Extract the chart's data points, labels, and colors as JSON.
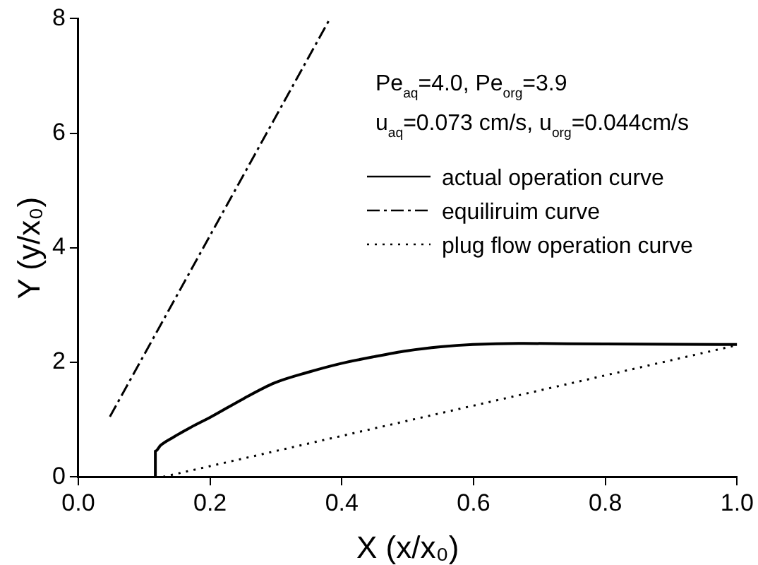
{
  "chart_data": {
    "type": "line",
    "xlabel": "X (x/x₀)",
    "ylabel": "Y (y/x₀)",
    "xlim": [
      0,
      1
    ],
    "xticks": [
      {
        "value": 0,
        "label": "0.0"
      },
      {
        "value": 0.2,
        "label": "0.2"
      },
      {
        "value": 0.4,
        "label": "0.4"
      },
      {
        "value": 0.6,
        "label": "0.6"
      },
      {
        "value": 0.8,
        "label": "0.8"
      },
      {
        "value": 1,
        "label": "1.0"
      }
    ],
    "ylim": [
      0,
      8
    ],
    "yticks": [
      0,
      2,
      4,
      6,
      8
    ],
    "grid": false,
    "legend": "top right",
    "marker": "none",
    "annotations": [
      "Pe$_{aq}$=4.0, Pe$_{org}$=3.9",
      "u$_{aq}$=0.073 cm/s, u$_{org}$=0.044cm/s"
    ],
    "series": [
      {
        "name": "actual operation curve",
        "color": "#000000",
        "line_style": "solid",
        "x": [
          0.117,
          0.117,
          0.125,
          0.144,
          0.17,
          0.202,
          0.25,
          0.298,
          0.35,
          0.399,
          0.45,
          0.499,
          0.55,
          0.599,
          0.668,
          0.8,
          1.0
        ],
        "values": [
          0,
          0.45,
          0.55,
          0.69,
          0.86,
          1.05,
          1.36,
          1.64,
          1.83,
          1.98,
          2.1,
          2.2,
          2.27,
          2.31,
          2.33,
          2.32,
          2.31
        ]
      },
      {
        "name": "equiliruim curve",
        "color": "#000000",
        "line_style": "dashed",
        "x": [
          0.048,
          0.382
        ],
        "values": [
          1.05,
          8
        ]
      },
      {
        "name": "plug flow operation curve",
        "color": "#000000",
        "line_style": "dotted",
        "x": [
          0.129,
          1.0
        ],
        "values": [
          0,
          2.3
        ]
      }
    ]
  }
}
